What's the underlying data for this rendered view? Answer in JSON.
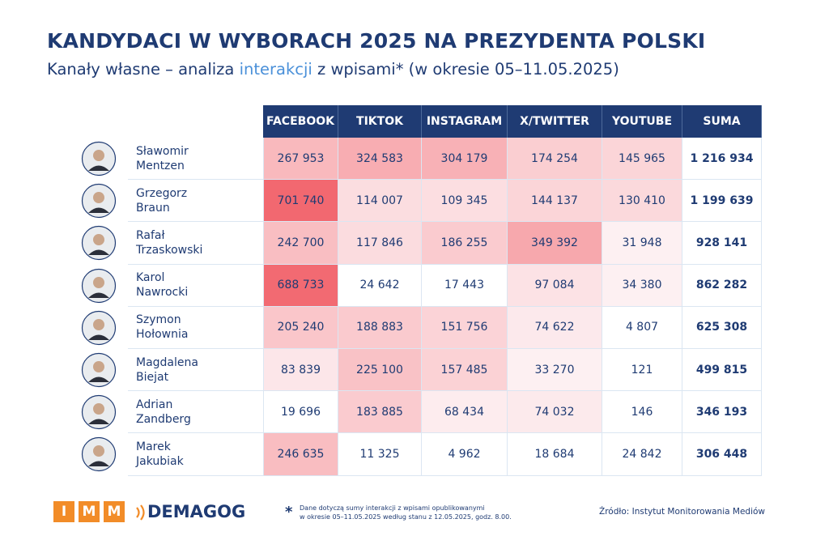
{
  "header": {
    "title": "KANDYDACI W WYBORACH 2025 NA PREZYDENTA POLSKI",
    "subtitle": [
      "Kanały własne – analiza ",
      "interakcji",
      " z wpisami* (w okresie 05–11.05.2025)"
    ]
  },
  "table": {
    "columns": [
      "FACEBOOK",
      "TIKTOK",
      "INSTAGRAM",
      "X/TWITTER",
      "YOUTUBE",
      "SUMA"
    ],
    "rows": [
      {
        "name": [
          "Sławomir",
          "Mentzen"
        ],
        "cells": [
          "267 953",
          "324 583",
          "304 179",
          "174 254",
          "145 965",
          "1 216 934"
        ]
      },
      {
        "name": [
          "Grzegorz",
          "Braun"
        ],
        "cells": [
          "701 740",
          "114 007",
          "109 345",
          "144 137",
          "130 410",
          "1 199 639"
        ]
      },
      {
        "name": [
          "Rafał",
          "Trzaskowski"
        ],
        "cells": [
          "242 700",
          "117 846",
          "186 255",
          "349 392",
          "31 948",
          "928 141"
        ]
      },
      {
        "name": [
          "Karol",
          "Nawrocki"
        ],
        "cells": [
          "688 733",
          "24 642",
          "17 443",
          "97 084",
          "34 380",
          "862 282"
        ]
      },
      {
        "name": [
          "Szymon",
          "Hołownia"
        ],
        "cells": [
          "205 240",
          "188 883",
          "151 756",
          "74 622",
          "4 807",
          "625 308"
        ]
      },
      {
        "name": [
          "Magdalena",
          "Biejat"
        ],
        "cells": [
          "83 839",
          "225 100",
          "157 485",
          "33 270",
          "121",
          "499 815"
        ]
      },
      {
        "name": [
          "Adrian",
          "Zandberg"
        ],
        "cells": [
          "19 696",
          "183 885",
          "68 434",
          "74 032",
          "146",
          "346 193"
        ]
      },
      {
        "name": [
          "Marek",
          "Jakubiak"
        ],
        "cells": [
          "246 635",
          "11 325",
          "4 962",
          "18 684",
          "24 842",
          "306 448"
        ]
      }
    ]
  },
  "footer": {
    "logo_imm": [
      "I",
      "M",
      "M"
    ],
    "logo_demagog": "DEMAGOG",
    "note_marker": "*",
    "note": [
      "Dane dotyczą sumy interakcji z wpisami opublikowanymi",
      "w okresie 05–11.05.2025 według stanu z 12.05.2025, godz. 8.00."
    ],
    "source": "Źródło: Instytut Monitorowania Mediów"
  }
}
